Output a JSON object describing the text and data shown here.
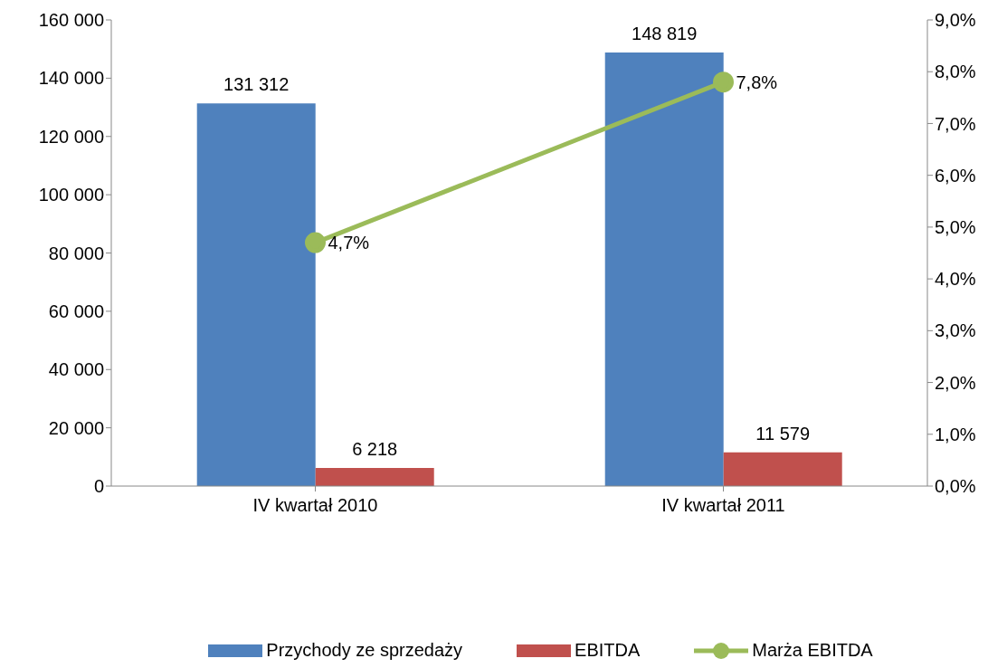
{
  "chart_data": {
    "type": "bar",
    "categories": [
      "IV kwartał 2010",
      "IV kwartał 2011"
    ],
    "series": [
      {
        "name": "Przychody ze sprzedaży",
        "color": "#4f81bd",
        "values": [
          131312,
          148819
        ],
        "value_labels": [
          "131 312",
          "148 819"
        ]
      },
      {
        "name": "EBITDA",
        "color": "#c0504d",
        "values": [
          6218,
          11579
        ],
        "value_labels": [
          "6 218",
          "11 579"
        ]
      },
      {
        "name": "Marża EBITDA",
        "type": "line",
        "axis": "y2",
        "color": "#9bbb59",
        "values": [
          4.7,
          7.8
        ],
        "value_labels": [
          "4,7%",
          "7,8%"
        ],
        "marker": "circle"
      }
    ],
    "ylim": [
      0,
      160000
    ],
    "yticks": [
      0,
      {
        "value": 20000,
        "label": "20 000"
      },
      {
        "value": 40000,
        "label": "40 000"
      },
      {
        "value": 60000,
        "label": "60 000"
      },
      {
        "value": 80000,
        "label": "80 000"
      },
      {
        "value": 100000,
        "label": "100 000"
      },
      {
        "value": 120000,
        "label": "120 000"
      },
      {
        "value": 140000,
        "label": "140 000"
      },
      {
        "value": 160000,
        "label": "160 000"
      }
    ],
    "y2lim": [
      0,
      9
    ],
    "y2ticks": [
      {
        "value": 0,
        "label": "0,0%"
      },
      {
        "value": 1,
        "label": "1,0%"
      },
      {
        "value": 2,
        "label": "2,0%"
      },
      {
        "value": 3,
        "label": "3,0%"
      },
      {
        "value": 4,
        "label": "4,0%"
      },
      {
        "value": 5,
        "label": "5,0%"
      },
      {
        "value": 6,
        "label": "6,0%"
      },
      {
        "value": 7,
        "label": "7,0%"
      },
      {
        "value": 8,
        "label": "8,0%"
      },
      {
        "value": 9,
        "label": "9,0%"
      }
    ],
    "grid": false,
    "legend": "bottom"
  }
}
